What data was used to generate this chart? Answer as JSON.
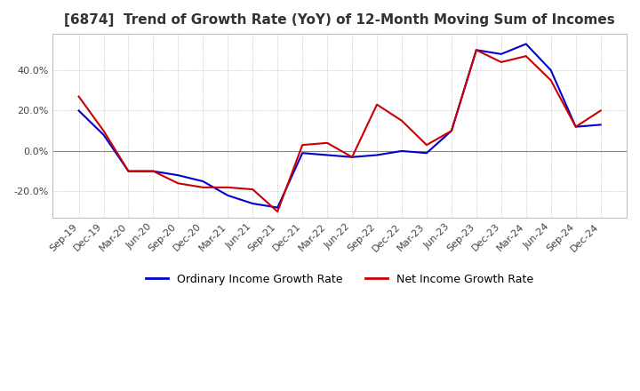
{
  "title": "[6874]  Trend of Growth Rate (YoY) of 12-Month Moving Sum of Incomes",
  "title_fontsize": 11,
  "background_color": "#ffffff",
  "plot_bg_color": "#ffffff",
  "grid_color": "#aaaaaa",
  "legend_labels": [
    "Ordinary Income Growth Rate",
    "Net Income Growth Rate"
  ],
  "legend_colors": [
    "#0000cc",
    "#cc0000"
  ],
  "x_labels": [
    "Sep-19",
    "Dec-19",
    "Mar-20",
    "Jun-20",
    "Sep-20",
    "Dec-20",
    "Mar-21",
    "Jun-21",
    "Sep-21",
    "Dec-21",
    "Mar-22",
    "Jun-22",
    "Sep-22",
    "Dec-22",
    "Mar-23",
    "Jun-23",
    "Sep-23",
    "Dec-23",
    "Mar-24",
    "Jun-24",
    "Sep-24",
    "Dec-24"
  ],
  "ylim": [
    -33,
    58
  ],
  "yticks": [
    -20.0,
    0.0,
    20.0,
    40.0
  ],
  "ordinary_income": [
    20.0,
    8.0,
    -10.0,
    -10.0,
    -12.0,
    -15.0,
    -22.0,
    -26.0,
    -28.0,
    -1.0,
    -2.0,
    -3.0,
    -2.0,
    0.0,
    -1.0,
    10.0,
    50.0,
    48.0,
    53.0,
    40.0,
    12.0,
    13.0
  ],
  "net_income": [
    27.0,
    10.0,
    -10.0,
    -10.0,
    -16.0,
    -18.0,
    -18.0,
    -19.0,
    -30.0,
    3.0,
    4.0,
    -3.0,
    23.0,
    15.0,
    3.0,
    10.0,
    50.0,
    44.0,
    47.0,
    35.0,
    12.0,
    20.0
  ]
}
